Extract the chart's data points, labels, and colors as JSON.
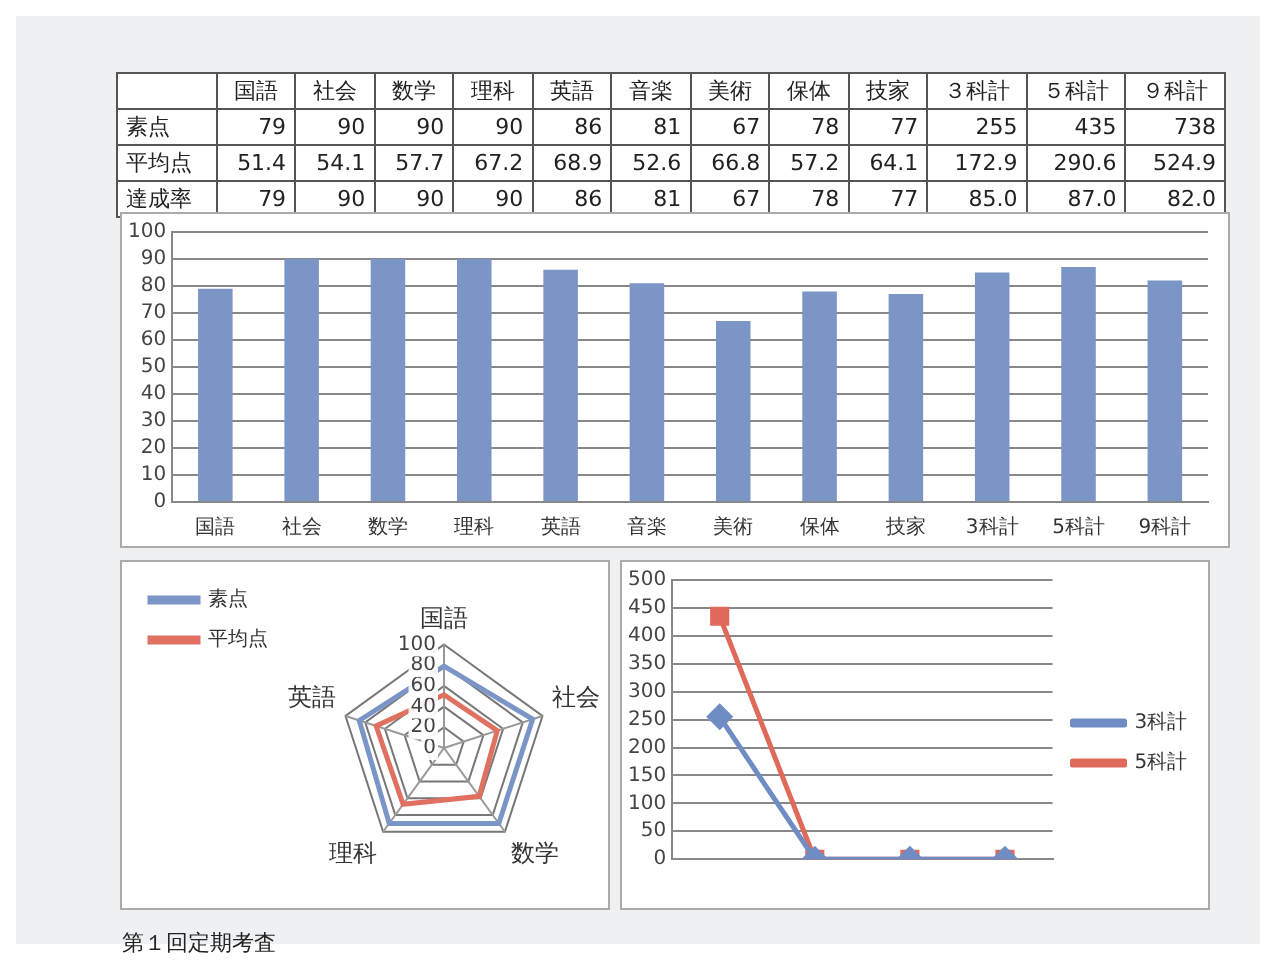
{
  "chart_data": [
    {
      "type": "other",
      "categories": [
        "国語",
        "社会",
        "数学",
        "理科",
        "英語",
        "音楽",
        "美術",
        "保体",
        "技家",
        "３科計",
        "５科計",
        "９科計"
      ],
      "series": [
        {
          "name": "素点",
          "values": [
            79,
            90,
            90,
            90,
            86,
            81,
            67,
            78,
            77,
            255,
            435,
            738
          ]
        },
        {
          "name": "平均点",
          "values": [
            51.4,
            54.1,
            57.7,
            67.2,
            68.9,
            52.6,
            66.8,
            57.2,
            64.1,
            172.9,
            290.6,
            524.9
          ],
          "value_labels": [
            "51.4",
            "54.1",
            "57.7",
            "67.2",
            "68.9",
            "52.6",
            "66.8",
            "57.2",
            "64.1",
            "172.9",
            "290.6",
            "524.9"
          ]
        },
        {
          "name": "達成率",
          "values": [
            79,
            90,
            90,
            90,
            86,
            81,
            67,
            78,
            77,
            85,
            87,
            82
          ],
          "value_labels": [
            "79",
            "90",
            "90",
            "90",
            "86",
            "81",
            "67",
            "78",
            "77",
            "85.0",
            "87.0",
            "82.0"
          ]
        }
      ],
      "data_labels": true
    },
    {
      "type": "bar",
      "categories": [
        "国語",
        "社会",
        "数学",
        "理科",
        "英語",
        "音楽",
        "美術",
        "保体",
        "技家",
        "3科計",
        "5科計",
        "9科計"
      ],
      "values": [
        79,
        90,
        90,
        90,
        86,
        81,
        67,
        78,
        77,
        85,
        87,
        82
      ],
      "color": "#7b95c6",
      "ylim": [
        0,
        100
      ],
      "yticks": [
        0,
        10,
        20,
        30,
        40,
        50,
        60,
        70,
        80,
        90,
        100
      ],
      "grid": "y",
      "legend": false
    },
    {
      "type": "radar",
      "categories": [
        "国語",
        "社会",
        "数学",
        "理科",
        "英語"
      ],
      "series": [
        {
          "name": "素点",
          "color": "#7b95c6",
          "values": [
            79,
            90,
            90,
            90,
            86
          ]
        },
        {
          "name": "平均点",
          "color": "#e07060",
          "values": [
            51.4,
            54.1,
            57.7,
            67.2,
            68.9
          ]
        }
      ],
      "ylim": [
        0,
        100
      ],
      "yticks": [
        0,
        20,
        40,
        60,
        80,
        100
      ],
      "grid": true,
      "legend": "top left",
      "marker": "none"
    },
    {
      "type": "line",
      "categories": [
        null,
        null,
        null,
        null
      ],
      "series": [
        {
          "name": "3科計",
          "color": "#6f8cc4",
          "values": [
            255,
            0,
            0,
            0
          ],
          "marker": "diamond"
        },
        {
          "name": "5科計",
          "color": "#e06a5a",
          "values": [
            435,
            0,
            0,
            0
          ],
          "marker": "square"
        }
      ],
      "ylim": [
        0,
        500
      ],
      "yticks": [
        0,
        50,
        100,
        150,
        200,
        250,
        300,
        350,
        400,
        450,
        500
      ],
      "grid": "y",
      "legend": "right",
      "annotations": [
        "第１回定期考査"
      ]
    }
  ]
}
